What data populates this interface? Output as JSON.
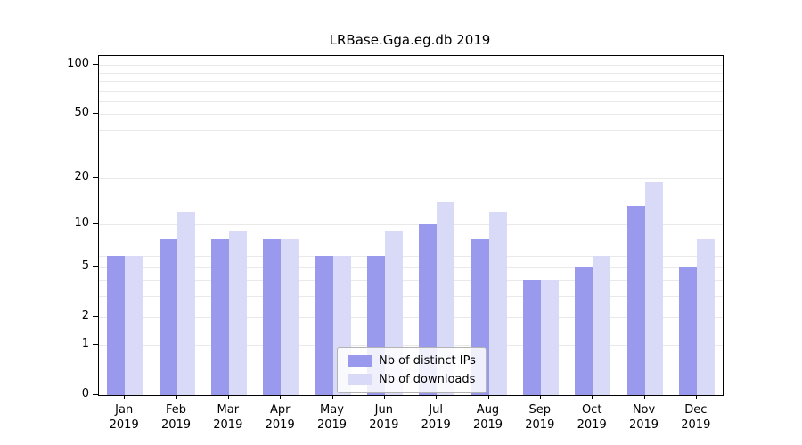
{
  "chart_data": {
    "type": "bar",
    "title": "LRBase.Gga.eg.db 2019",
    "categories": [
      "Jan",
      "Feb",
      "Mar",
      "Apr",
      "May",
      "Jun",
      "Jul",
      "Aug",
      "Sep",
      "Oct",
      "Nov",
      "Dec"
    ],
    "x_sublabel": "2019",
    "series": [
      {
        "name": "Nb of distinct IPs",
        "color": "#9999ee",
        "values": [
          6,
          8,
          8,
          8,
          6,
          6,
          10,
          8,
          4,
          5,
          13,
          5
        ]
      },
      {
        "name": "Nb of downloads",
        "color": "#d9d9f8",
        "values": [
          6,
          12,
          9,
          8,
          6,
          9,
          14,
          12,
          4,
          6,
          19,
          8
        ]
      }
    ],
    "y_ticks": [
      0,
      1,
      2,
      5,
      10,
      20,
      50,
      100
    ],
    "y_gridlines": [
      1,
      2,
      3,
      4,
      5,
      6,
      7,
      8,
      9,
      10,
      20,
      30,
      40,
      50,
      60,
      70,
      80,
      90,
      100
    ],
    "y_scale": "log10(value+1)",
    "ylim": [
      0,
      100
    ],
    "grid": true,
    "legend_position": "bottom-center",
    "xlabel": "",
    "ylabel": ""
  }
}
